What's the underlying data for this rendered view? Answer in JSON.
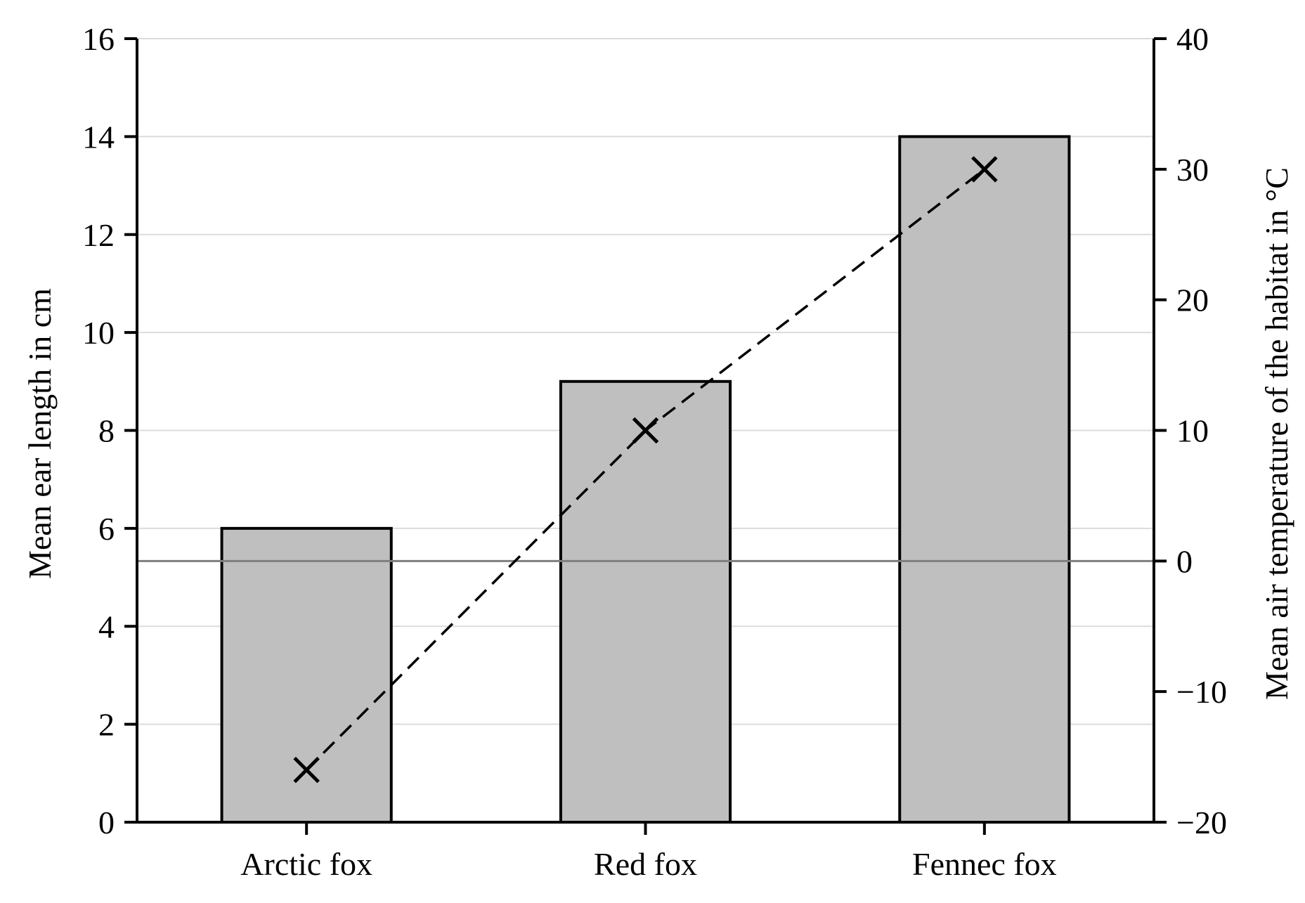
{
  "chart_data": {
    "type": "bar",
    "categories": [
      "Arctic fox",
      "Red fox",
      "Fennec fox"
    ],
    "bar_series": {
      "values": [
        6,
        9,
        14
      ],
      "color": "#bfbfbf",
      "edge_color": "#000000"
    },
    "line_series": {
      "values": [
        -16,
        10,
        30
      ],
      "marker": "x",
      "line_style": "dashed",
      "color": "#000000"
    },
    "ylabel_left": "Mean ear length in cm",
    "ylabel_right": "Mean air temperature of the habitat in °C",
    "ylim_left": [
      0,
      16
    ],
    "ylim_right": [
      -20,
      40
    ],
    "yticks_left": [
      "0",
      "2",
      "4",
      "6",
      "8",
      "10",
      "12",
      "14",
      "16"
    ],
    "yticks_right": [
      "−20",
      "−10",
      "0",
      "10",
      "20",
      "30",
      "40"
    ],
    "reference_line_right": 0,
    "grid": "horizontal",
    "grid_color": "#dcdcdc",
    "reference_line_color": "#7f7f7f"
  }
}
